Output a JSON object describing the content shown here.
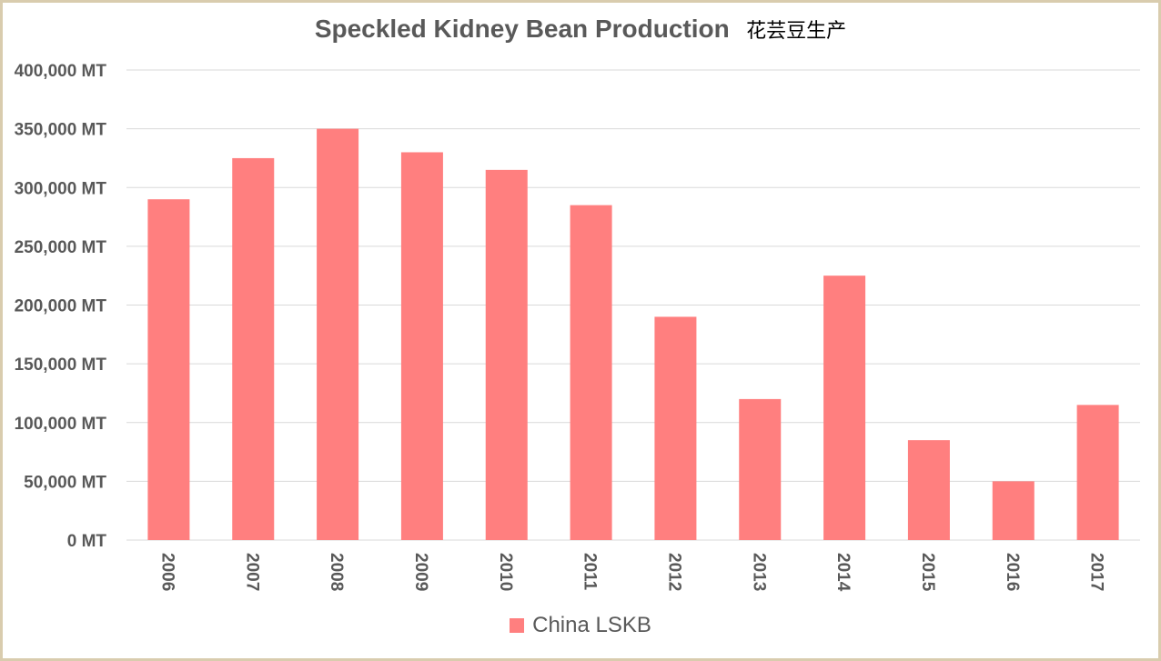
{
  "chart_data": {
    "type": "bar",
    "title": "Speckled Kidney Bean Production",
    "subtitle": "花芸豆生产",
    "categories": [
      "2006",
      "2007",
      "2008",
      "2009",
      "2010",
      "2011",
      "2012",
      "2013",
      "2014",
      "2015",
      "2016",
      "2017"
    ],
    "series": [
      {
        "name": "China LSKB",
        "values": [
          290000,
          325000,
          350000,
          330000,
          315000,
          285000,
          190000,
          120000,
          225000,
          85000,
          50000,
          115000
        ]
      }
    ],
    "ylim": [
      0,
      400000
    ],
    "yticks": [
      0,
      50000,
      100000,
      150000,
      200000,
      250000,
      300000,
      350000,
      400000
    ],
    "ytick_labels": [
      "0 MT",
      "50,000 MT",
      "100,000 MT",
      "150,000 MT",
      "200,000 MT",
      "250,000 MT",
      "300,000 MT",
      "350,000 MT",
      "400,000 MT"
    ],
    "grid": true,
    "legend": "bottom",
    "bar_color": "#ff7f7f",
    "grid_color": "#d9d9d9"
  }
}
